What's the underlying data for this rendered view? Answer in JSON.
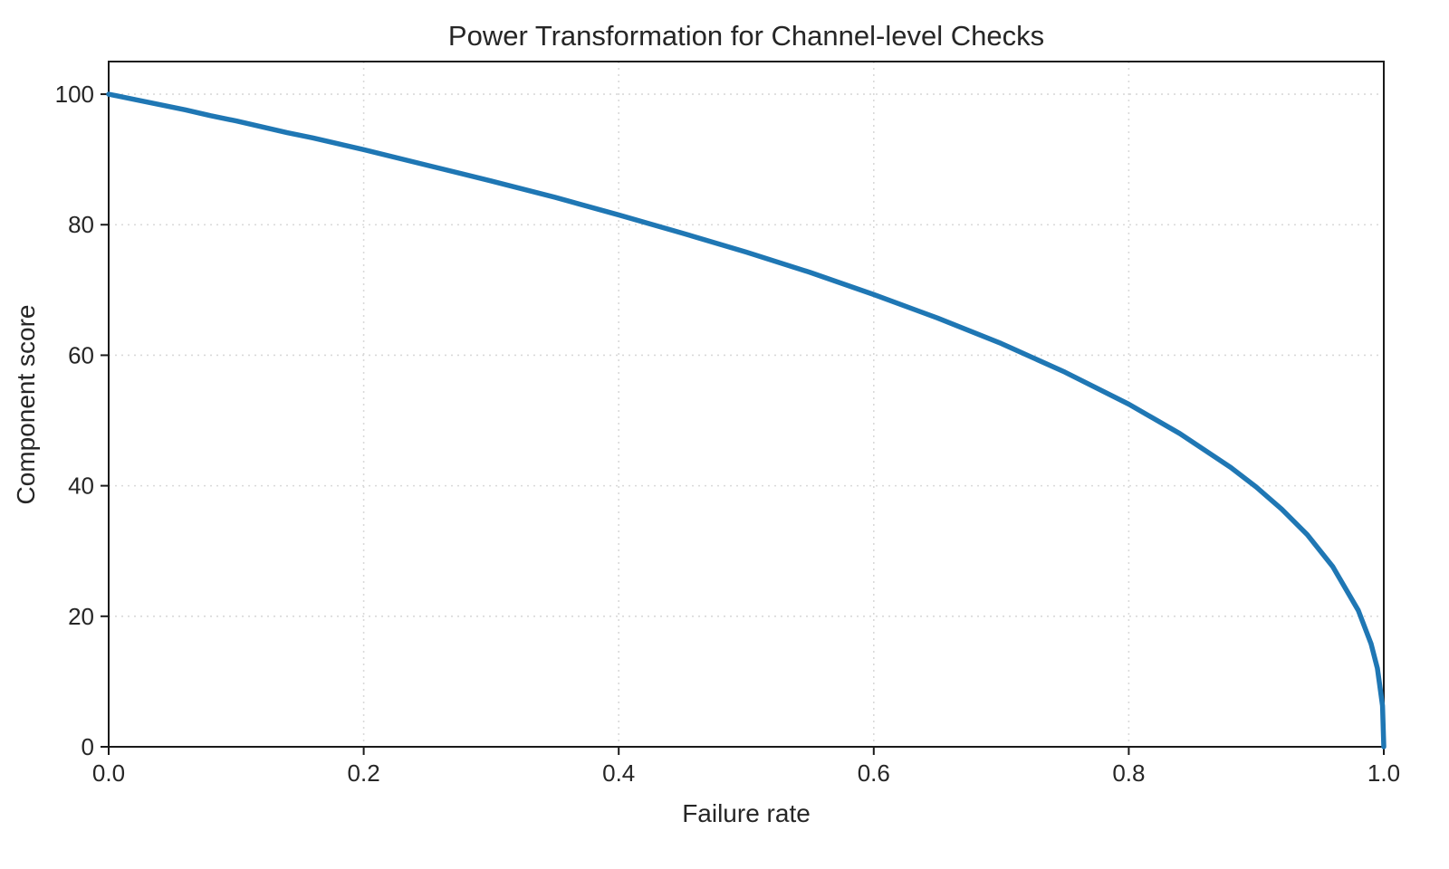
{
  "chart_data": {
    "type": "line",
    "title": "Power Transformation for Channel-level Checks",
    "xlabel": "Failure rate",
    "ylabel": "Component score",
    "xlim": [
      0.0,
      1.0
    ],
    "ylim": [
      0,
      105
    ],
    "xticks": [
      "0.0",
      "0.2",
      "0.4",
      "0.6",
      "0.8",
      "1.0"
    ],
    "xtick_values": [
      0.0,
      0.2,
      0.4,
      0.6,
      0.8,
      1.0
    ],
    "yticks": [
      "0",
      "20",
      "40",
      "60",
      "80",
      "100"
    ],
    "ytick_values": [
      0,
      20,
      40,
      60,
      80,
      100
    ],
    "grid": true,
    "legend": "none",
    "line_color": "#1f77b4",
    "line_width": 5.5,
    "series": [
      {
        "name": "Component score",
        "x": [
          0.0,
          0.02,
          0.04,
          0.06,
          0.08,
          0.1,
          0.12,
          0.14,
          0.16,
          0.18,
          0.2,
          0.25,
          0.3,
          0.35,
          0.4,
          0.45,
          0.5,
          0.55,
          0.6,
          0.65,
          0.7,
          0.75,
          0.8,
          0.84,
          0.88,
          0.9,
          0.92,
          0.94,
          0.96,
          0.98,
          0.99,
          0.995,
          0.999,
          1.0
        ],
        "y": [
          100,
          99.2,
          98.4,
          97.6,
          96.7,
          95.9,
          95.0,
          94.1,
          93.3,
          92.4,
          91.5,
          89.1,
          86.7,
          84.2,
          81.5,
          78.7,
          75.8,
          72.7,
          69.3,
          65.7,
          61.8,
          57.4,
          52.5,
          48.0,
          42.8,
          39.8,
          36.4,
          32.5,
          27.6,
          20.9,
          15.8,
          12.0,
          6.3,
          0
        ]
      }
    ]
  }
}
